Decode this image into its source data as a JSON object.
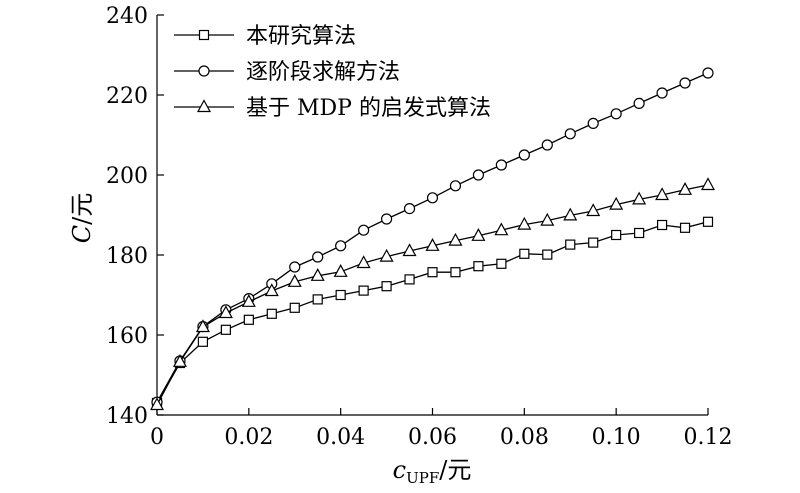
{
  "chart_data": {
    "type": "line",
    "title": "",
    "xlabel": "cUPF/元",
    "xlabel_main": "c",
    "xlabel_sub": "UPF",
    "xlabel_unit": "/元",
    "ylabel": "C/元",
    "ylabel_main": "C",
    "ylabel_unit": "/元",
    "xlim": [
      0,
      0.12
    ],
    "ylim": [
      140,
      240
    ],
    "xticks": [
      0,
      0.02,
      0.04,
      0.06,
      0.08,
      0.1,
      0.12
    ],
    "xtick_labels": [
      "0",
      "0.02",
      "0.04",
      "0.06",
      "0.08",
      "0.10",
      "0.12"
    ],
    "yticks": [
      140,
      160,
      180,
      200,
      220,
      240
    ],
    "ytick_labels": [
      "140",
      "160",
      "180",
      "200",
      "220",
      "240"
    ],
    "grid": false,
    "legend_position": "top-left",
    "x": [
      0,
      0.005,
      0.01,
      0.015,
      0.02,
      0.025,
      0.03,
      0.035,
      0.04,
      0.045,
      0.05,
      0.055,
      0.06,
      0.065,
      0.07,
      0.075,
      0.08,
      0.085,
      0.09,
      0.095,
      0.1,
      0.105,
      0.11,
      0.115,
      0.12
    ],
    "series": [
      {
        "name": "本研究算法",
        "marker": "square",
        "values": [
          143.0,
          153.0,
          158.3,
          161.3,
          163.8,
          165.3,
          166.8,
          168.9,
          170.0,
          171.1,
          172.2,
          173.9,
          175.7,
          175.7,
          177.2,
          177.8,
          180.3,
          180.1,
          182.6,
          183.1,
          185.0,
          185.5,
          187.5,
          186.8,
          188.3
        ]
      },
      {
        "name": "逐阶段求解方法",
        "marker": "circle",
        "values": [
          143.2,
          153.5,
          162.1,
          166.3,
          169.1,
          172.8,
          177.0,
          179.5,
          182.3,
          186.2,
          189.0,
          191.6,
          194.3,
          197.3,
          200.0,
          202.5,
          205.0,
          207.5,
          210.3,
          212.9,
          215.3,
          217.9,
          220.5,
          223.0,
          225.5
        ]
      },
      {
        "name": "基于 MDP 的启发式算法",
        "marker": "triangle",
        "values": [
          142.5,
          153.3,
          162.0,
          165.5,
          168.3,
          171.0,
          173.3,
          174.8,
          175.8,
          178.0,
          179.6,
          181.0,
          182.3,
          183.6,
          184.8,
          186.2,
          187.6,
          188.6,
          189.9,
          191.0,
          192.6,
          193.9,
          195.0,
          196.3,
          197.5
        ]
      }
    ]
  }
}
